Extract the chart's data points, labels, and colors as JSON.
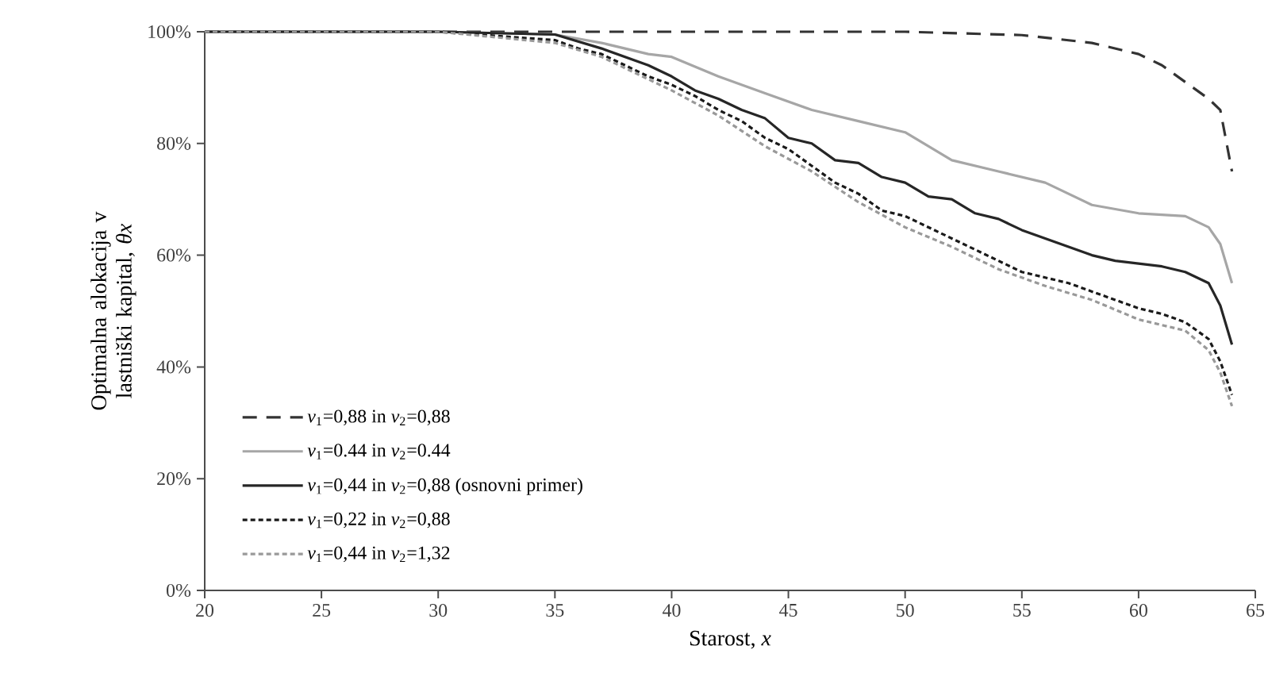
{
  "chart_data": {
    "type": "line",
    "xlabel": "Starost, *x*",
    "ylabel": "Optimalna alokacija v lastniški kapital, *θx*",
    "xlim": [
      20,
      65
    ],
    "xticks": [
      20,
      25,
      30,
      35,
      40,
      45,
      50,
      55,
      60,
      65
    ],
    "ylim": [
      0,
      100
    ],
    "yticks": [
      {
        "value": 0,
        "label": "0%"
      },
      {
        "value": 20,
        "label": "20%"
      },
      {
        "value": 40,
        "label": "40%"
      },
      {
        "value": 60,
        "label": "60%"
      },
      {
        "value": 80,
        "label": "80%"
      },
      {
        "value": 100,
        "label": "100%"
      }
    ],
    "grid": false,
    "legend": "bottom left",
    "marker": "none",
    "series": [
      {
        "name": "*v*$_{1}$=0,88 in *v*$_{2}$=0,88",
        "color": "#333333",
        "line_style": "dashed",
        "x": [
          20,
          30,
          35,
          40,
          45,
          50,
          55,
          58,
          60,
          61,
          62,
          63,
          63.5,
          64
        ],
        "values": [
          100,
          100,
          100,
          100,
          100,
          100,
          99.4,
          98,
          96,
          94,
          91,
          88,
          86,
          75
        ]
      },
      {
        "name": "*v*$_{1}$=0.44 in *v*$_{2}$=0.44",
        "color": "#a6a6a6",
        "line_style": "solid",
        "x": [
          20,
          30,
          35,
          37,
          39,
          40,
          42,
          44,
          46,
          48,
          50,
          52,
          54,
          56,
          58,
          60,
          62,
          63,
          63.5,
          64
        ],
        "values": [
          100,
          100,
          99.5,
          98,
          96,
          95.5,
          92,
          89,
          86,
          84,
          82,
          77,
          75,
          73,
          69,
          67.5,
          67,
          65,
          62,
          55
        ]
      },
      {
        "name": "*v*$_{1}$=0,44 in *v*$_{2}$=0,88 (osnovni primer)",
        "color": "#262626",
        "line_style": "solid",
        "x": [
          20,
          30,
          35,
          37,
          39,
          40,
          41,
          42,
          43,
          44,
          45,
          46,
          47,
          48,
          49,
          50,
          51,
          52,
          53,
          54,
          55,
          56,
          57,
          58,
          59,
          60,
          61,
          62,
          63,
          63.5,
          64
        ],
        "values": [
          100,
          100,
          99.5,
          97,
          94,
          92,
          89.5,
          88,
          86,
          84.5,
          81,
          80,
          77,
          76.5,
          74,
          73,
          70.5,
          70,
          67.5,
          66.5,
          64.5,
          63,
          61.5,
          60,
          59,
          58.5,
          58,
          57,
          55,
          51,
          44
        ]
      },
      {
        "name": "*v*$_{1}$=0,22 in *v*$_{2}$=0,88",
        "color": "#1a1a1a",
        "line_style": "dotted",
        "x": [
          20,
          30,
          35,
          36,
          37,
          38,
          39,
          40,
          41,
          42,
          43,
          44,
          45,
          46,
          47,
          48,
          49,
          50,
          51,
          52,
          53,
          54,
          55,
          56,
          57,
          58,
          59,
          60,
          61,
          62,
          63,
          63.5,
          64
        ],
        "values": [
          100,
          100,
          98.5,
          97,
          96,
          94,
          92,
          90.5,
          88.5,
          86,
          84,
          81,
          79,
          76,
          73,
          71,
          68,
          67,
          65,
          63,
          61,
          59,
          57,
          56,
          55,
          53.5,
          52,
          50.5,
          49.5,
          48,
          45,
          41,
          35
        ]
      },
      {
        "name": "*v*$_{1}$=0,44 in *v*$_{2}$=1,32",
        "color": "#999999",
        "line_style": "dotted",
        "x": [
          20,
          30,
          35,
          37,
          39,
          40,
          42,
          44,
          46,
          48,
          50,
          52,
          54,
          56,
          58,
          60,
          62,
          63,
          63.5,
          64
        ],
        "values": [
          100,
          100,
          98,
          95.5,
          91.5,
          89.5,
          85,
          79.5,
          75,
          69.5,
          65,
          61.5,
          57.5,
          54.5,
          52,
          48.5,
          46.5,
          43,
          39,
          33
        ]
      }
    ]
  }
}
